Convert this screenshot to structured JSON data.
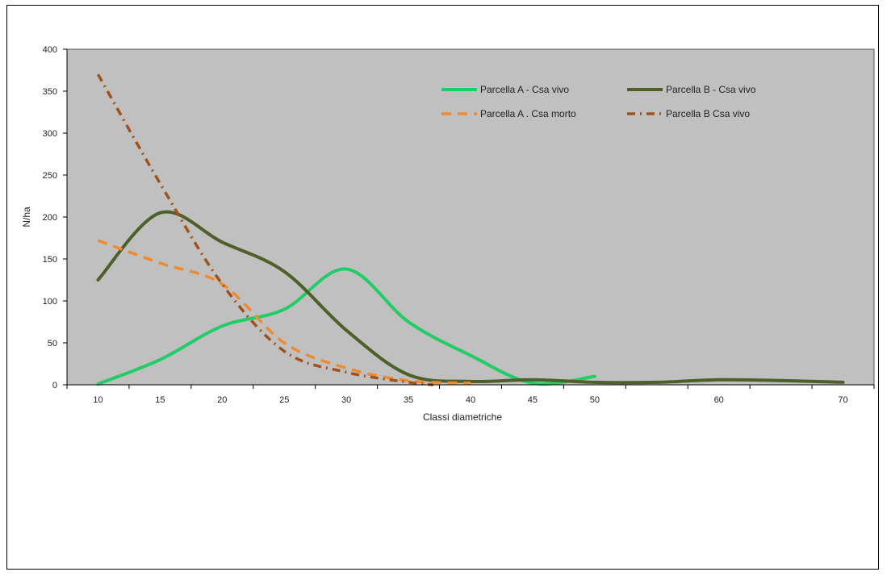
{
  "chart_data": {
    "type": "line",
    "title": "",
    "xlabel": "Classi diametriche",
    "ylabel": "N/ha",
    "xlim": [
      7.5,
      72.5
    ],
    "ylim": [
      0,
      400
    ],
    "x_ticks": [
      10,
      15,
      20,
      25,
      30,
      35,
      40,
      45,
      50,
      55,
      60,
      65,
      70
    ],
    "x_tick_labels": [
      "10",
      "15",
      "20",
      "25",
      "30",
      "35",
      "40",
      "45",
      "50",
      "",
      "60",
      "",
      "70"
    ],
    "y_ticks": [
      0,
      50,
      100,
      150,
      200,
      250,
      300,
      350,
      400
    ],
    "grid": false,
    "plot_background": "#c0c0c0",
    "legend_position": "top-right (inside plot)",
    "series": [
      {
        "name": "Parcella A - Csa vivo",
        "color": "#22cc66",
        "style": "solid",
        "points": [
          [
            10,
            1
          ],
          [
            15,
            30
          ],
          [
            20,
            70
          ],
          [
            25,
            90
          ],
          [
            30,
            138
          ],
          [
            35,
            75
          ],
          [
            40,
            35
          ],
          [
            45,
            2
          ],
          [
            50,
            10
          ]
        ]
      },
      {
        "name": "Parcella B - Csa vivo",
        "color": "#4f5f2a",
        "style": "solid",
        "points": [
          [
            10,
            125
          ],
          [
            15,
            205
          ],
          [
            20,
            170
          ],
          [
            25,
            135
          ],
          [
            30,
            65
          ],
          [
            35,
            12
          ],
          [
            40,
            4
          ],
          [
            45,
            6
          ],
          [
            50,
            3
          ],
          [
            55,
            3
          ],
          [
            60,
            6
          ],
          [
            65,
            5
          ],
          [
            70,
            3
          ]
        ]
      },
      {
        "name": "Parcella A . Csa morto",
        "color": "#f08a30",
        "style": "dashed",
        "points": [
          [
            10,
            172
          ],
          [
            15,
            145
          ],
          [
            20,
            120
          ],
          [
            25,
            50
          ],
          [
            30,
            20
          ],
          [
            35,
            5
          ],
          [
            40,
            2
          ]
        ]
      },
      {
        "name": "Parcella B Csa vivo",
        "color": "#a0521d",
        "style": "dashdot",
        "points": [
          [
            10,
            370
          ],
          [
            15,
            240
          ],
          [
            20,
            120
          ],
          [
            25,
            40
          ],
          [
            30,
            15
          ],
          [
            35,
            3
          ],
          [
            37,
            0
          ]
        ]
      }
    ]
  }
}
